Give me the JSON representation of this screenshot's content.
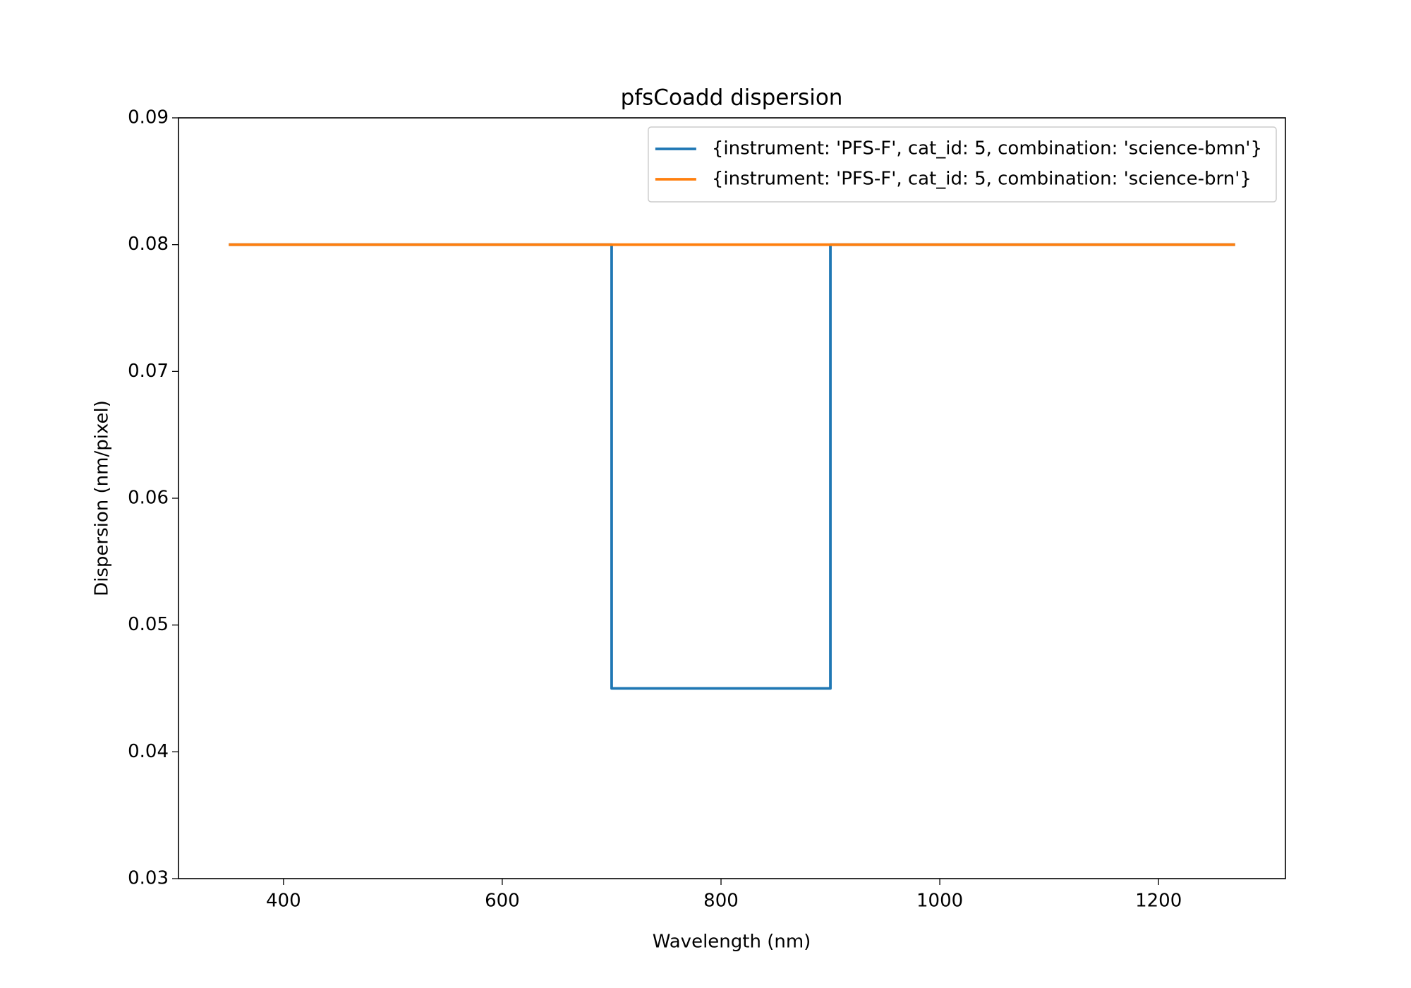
{
  "chart_data": {
    "type": "line",
    "title": "pfsCoadd dispersion",
    "x_label": "Wavelength (nm)",
    "y_label": "Dispersion (nm/pixel)",
    "series": [
      {
        "name": "{instrument: 'PFS-F', cat_id: 5, combination: 'science-bmn'}",
        "color": "#1f77b4",
        "x": [
          350,
          700,
          700,
          900,
          900,
          1270
        ],
        "values": [
          0.08,
          0.08,
          0.045,
          0.045,
          0.08,
          0.08
        ]
      },
      {
        "name": "{instrument: 'PFS-F', cat_id: 5, combination: 'science-brn'}",
        "color": "#ff7f0e",
        "x": [
          350,
          1270
        ],
        "values": [
          0.08,
          0.08
        ]
      }
    ],
    "xlim": [
      304,
      1316
    ],
    "xticks": [
      400,
      600,
      800,
      1000,
      1200
    ],
    "ylim": [
      0.03,
      0.09
    ],
    "yticks": [
      {
        "value": 0.03,
        "label": "0.03"
      },
      {
        "value": 0.04,
        "label": "0.04"
      },
      {
        "value": 0.05,
        "label": "0.05"
      },
      {
        "value": 0.06,
        "label": "0.06"
      },
      {
        "value": 0.07,
        "label": "0.07"
      },
      {
        "value": 0.08,
        "label": "0.08"
      },
      {
        "value": 0.09,
        "label": "0.09"
      }
    ],
    "grid": false,
    "legend": "upper right"
  }
}
